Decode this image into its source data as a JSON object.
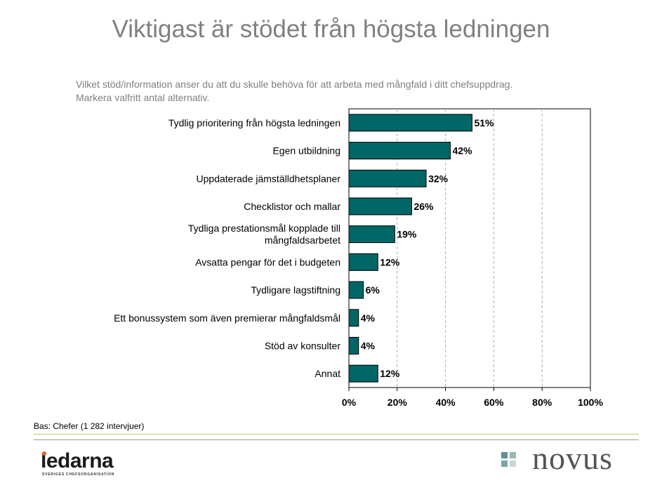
{
  "title": "Viktigast är stödet från högsta ledningen",
  "subtitle_line1": "Vilket stöd/information anser du att du skulle behöva för att arbeta med mångfald i ditt chefsuppdrag.",
  "subtitle_line2": "Markera valfritt antal alternativ.",
  "footnote": "Bas: Chefer (1 282 intervjuer)",
  "logos": {
    "ledarna_word": "ledarna",
    "ledarna_tagline": "SVERIGES CHEFSORGANISATION",
    "novus_word": "novus"
  },
  "colors": {
    "bar": "#006666",
    "bar_border": "#000000",
    "gridline": "#b0b0b0",
    "title": "#808080",
    "novus_squares": [
      "#5f8f94",
      "#9ab6b9",
      "#7fa4a8",
      "#c7d7d8"
    ]
  },
  "chart_data": {
    "type": "bar",
    "orientation": "horizontal",
    "categories": [
      "Tydlig prioritering från högsta ledningen",
      "Egen utbildning",
      "Uppdaterade jämställdhetsplaner",
      "Checklistor och mallar",
      "Tydliga prestationsmål kopplade till mångfaldsarbetet",
      "Avsatta pengar för det i budgeten",
      "Tydligare lagstiftning",
      "Ett bonussystem som även premierar mångfaldsmål",
      "Stöd av konsulter",
      "Annat"
    ],
    "category_lines": [
      [
        "Tydlig prioritering från högsta ledningen"
      ],
      [
        "Egen utbildning"
      ],
      [
        "Uppdaterade jämställdhetsplaner"
      ],
      [
        "Checklistor och mallar"
      ],
      [
        "Tydliga prestationsmål kopplade till",
        "mångfaldsarbetet"
      ],
      [
        "Avsatta pengar för det i budgeten"
      ],
      [
        "Tydligare lagstiftning"
      ],
      [
        "Ett bonussystem som även premierar mångfaldsmål"
      ],
      [
        "Stöd av konsulter"
      ],
      [
        "Annat"
      ]
    ],
    "values": [
      51,
      42,
      32,
      26,
      19,
      12,
      6,
      4,
      4,
      12
    ],
    "value_labels": [
      "51%",
      "42%",
      "32%",
      "26%",
      "19%",
      "12%",
      "6%",
      "4%",
      "4%",
      "12%"
    ],
    "x_ticks": [
      0,
      20,
      40,
      60,
      80,
      100
    ],
    "x_tick_labels": [
      "0%",
      "20%",
      "40%",
      "60%",
      "80%",
      "100%"
    ],
    "xlim": [
      0,
      100
    ],
    "grid": true,
    "legend": "none"
  }
}
